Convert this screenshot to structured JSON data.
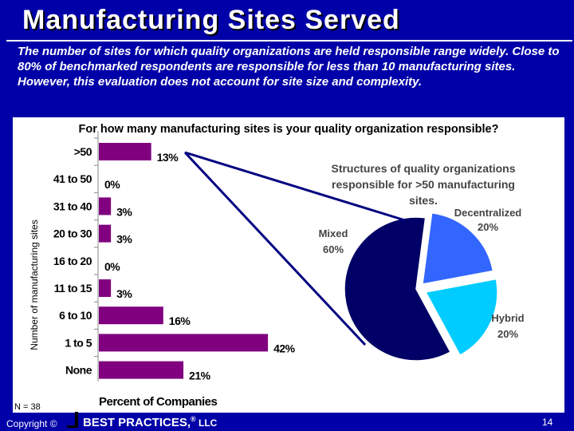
{
  "slide": {
    "title": "Manufacturing Sites Served",
    "subtitle": "The number of sites for which quality organizations are held responsible range widely.  Close to 80% of benchmarked respondents are responsible for less than 10 manufacturing sites. However, this evaluation does not account for site size and complexity."
  },
  "chart_data": [
    {
      "type": "bar",
      "orientation": "horizontal",
      "title": "For how many manufacturing sites is your quality organization responsible?",
      "categories": [
        ">50",
        "41 to 50",
        "31 to 40",
        "20 to 30",
        "16 to 20",
        "11 to 15",
        "6 to 10",
        "1 to 5",
        "None"
      ],
      "values": [
        13,
        0,
        3,
        3,
        0,
        3,
        16,
        42,
        21
      ],
      "value_labels": [
        "13%",
        "0%",
        "3%",
        "3%",
        "0%",
        "3%",
        "16%",
        "42%",
        "21%"
      ],
      "xlabel": "Percent of Companies",
      "ylabel": "Number of manufacturing sites",
      "xlim": [
        0,
        50
      ],
      "bar_color": "#800080",
      "note": "N = 38"
    },
    {
      "type": "pie",
      "title": "Structures of quality organizations responsible for >50 manufacturing sites.",
      "labels": [
        "Decentralized",
        "Hybrid",
        "Mixed"
      ],
      "values": [
        20,
        20,
        60
      ],
      "value_labels": [
        "20%",
        "20%",
        "60%"
      ],
      "colors": [
        "#3366ff",
        "#00ccff",
        "#000066"
      ]
    }
  ],
  "footer": {
    "copyright": "Copyright ©",
    "brand": "BEST PRACTICES,",
    "registered": "®",
    "brand_suffix": " LLC",
    "page": "14"
  },
  "colors": {
    "background": "#0000a8",
    "panel": "#ffffff",
    "text": "#ffffff"
  }
}
